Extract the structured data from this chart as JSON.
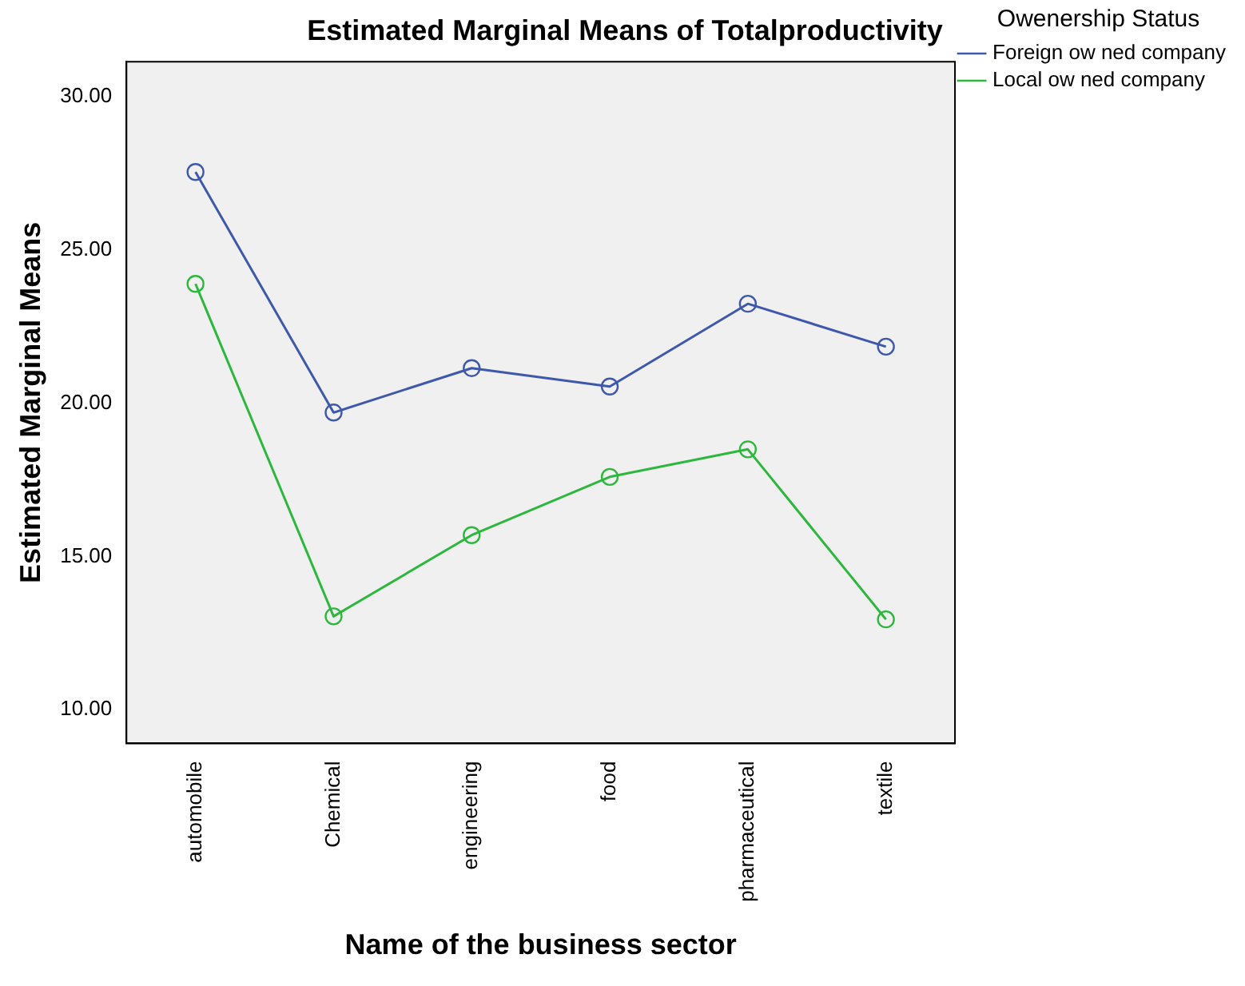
{
  "chart_data": {
    "type": "line",
    "title": "Estimated Marginal Means of Totalproductivity",
    "xlabel": "Name of the business sector",
    "ylabel": "Estimated Marginal Means",
    "legend_title": "Owenership Status",
    "categories": [
      "automobile",
      "Chemical",
      "engineering",
      "food",
      "pharmaceutical",
      "textile"
    ],
    "series": [
      {
        "name": "Foreign ow ned company",
        "color": "#3e58ac",
        "values": [
          27.55,
          19.7,
          21.15,
          20.55,
          23.25,
          21.85
        ]
      },
      {
        "name": "Local ow ned company",
        "color": "#2db83d",
        "values": [
          23.9,
          13.05,
          15.7,
          17.6,
          18.5,
          12.95
        ]
      }
    ],
    "ylim": [
      8.9,
      31.15
    ],
    "yticks": [
      {
        "value": 10,
        "label": "10.00"
      },
      {
        "value": 15,
        "label": "15.00"
      },
      {
        "value": 20,
        "label": "20.00"
      },
      {
        "value": 25,
        "label": "25.00"
      },
      {
        "value": 30,
        "label": "30.00"
      }
    ],
    "grid": false,
    "legend": "top right",
    "marker": "circle",
    "line_style": "solid"
  }
}
